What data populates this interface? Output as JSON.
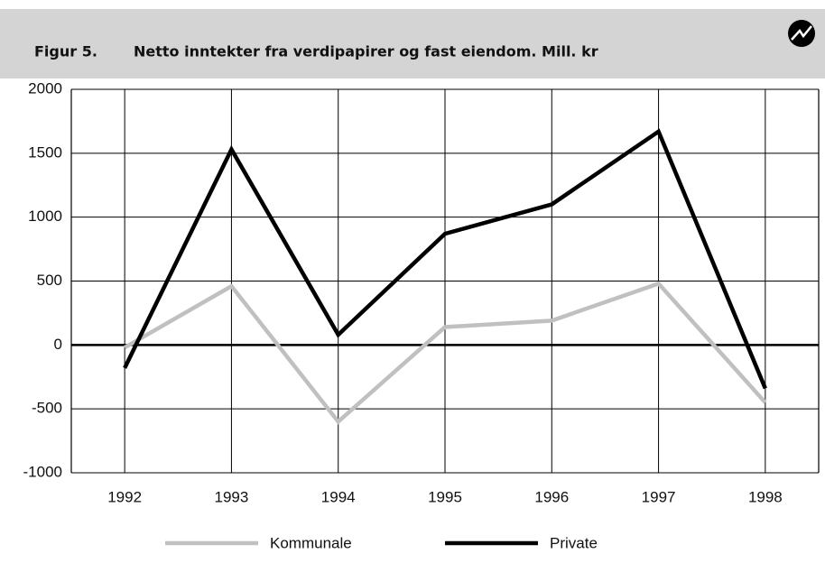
{
  "chart_data": {
    "type": "line",
    "figure_label": "Figur 5.",
    "title": "Netto inntekter fra verdipapirer og fast eiendom. Mill. kr",
    "categories": [
      "1992",
      "1993",
      "1994",
      "1995",
      "1996",
      "1997",
      "1998"
    ],
    "series": [
      {
        "name": "Kommunale",
        "color": "#c0c0c0",
        "values": [
          -20,
          460,
          -600,
          140,
          190,
          480,
          -450
        ]
      },
      {
        "name": "Private",
        "color": "#000000",
        "values": [
          -180,
          1530,
          80,
          870,
          1100,
          1670,
          -340
        ]
      }
    ],
    "ylim": [
      -1000,
      2000
    ],
    "yticks": [
      -1000,
      -500,
      0,
      500,
      1000,
      1500,
      2000
    ],
    "grid": true
  }
}
